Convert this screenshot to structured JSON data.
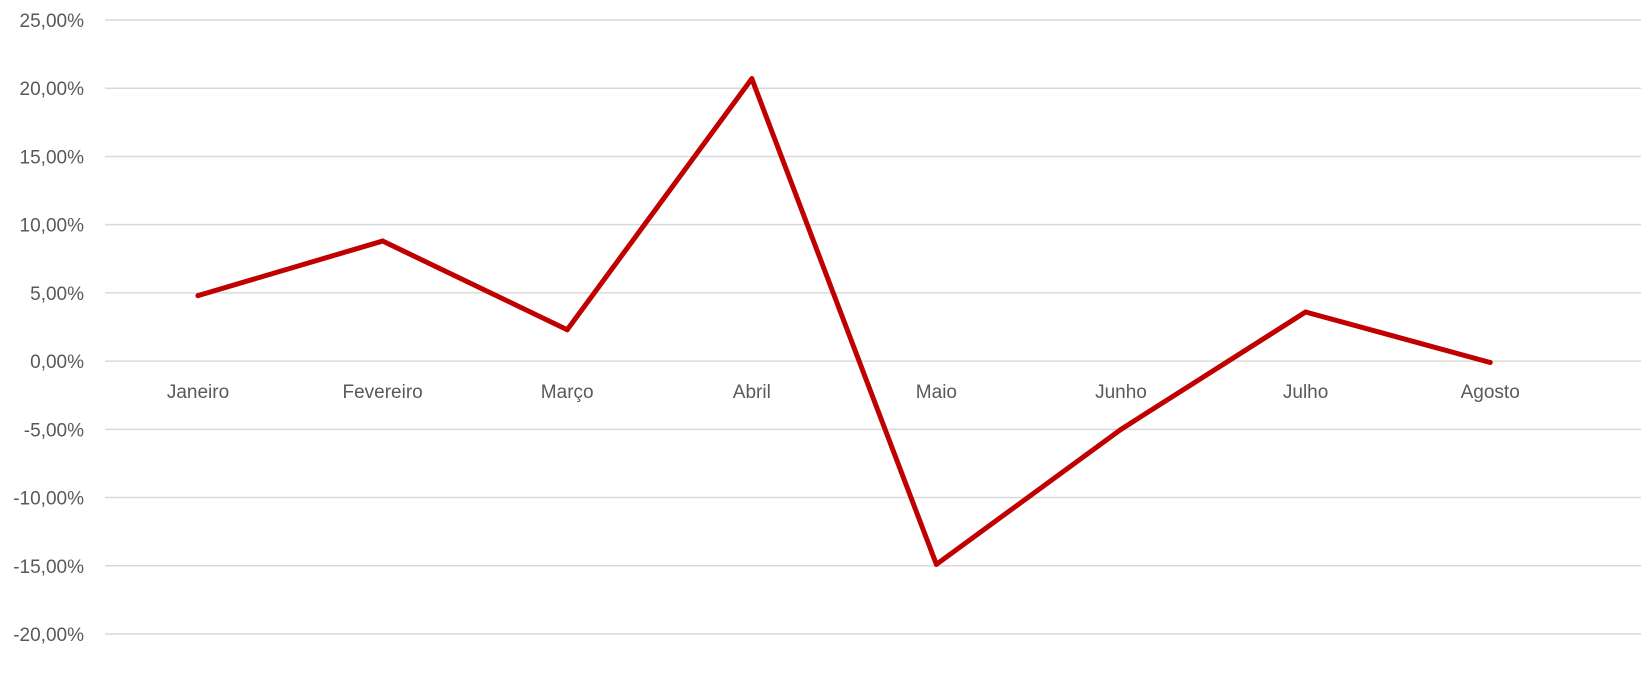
{
  "chart_data": {
    "type": "line",
    "categories": [
      "Janeiro",
      "Fevereiro",
      "Março",
      "Abril",
      "Maio",
      "Junho",
      "Julho",
      "Agosto"
    ],
    "series": [
      {
        "values": [
          4.8,
          8.8,
          2.3,
          20.7,
          -14.9,
          -5.0,
          3.6,
          -0.1
        ],
        "color": "#c00000"
      }
    ],
    "y_ticks": [
      "25,00%",
      "20,00%",
      "15,00%",
      "10,00%",
      "5,00%",
      "0,00%",
      "-5,00%",
      "-10,00%",
      "-15,00%",
      "-20,00%"
    ],
    "y_tick_values": [
      25,
      20,
      15,
      10,
      5,
      0,
      -5,
      -10,
      -15,
      -20
    ],
    "ylim": [
      -20,
      25
    ],
    "grid": true,
    "legend": "none",
    "title": "",
    "xlabel": "",
    "ylabel": ""
  }
}
